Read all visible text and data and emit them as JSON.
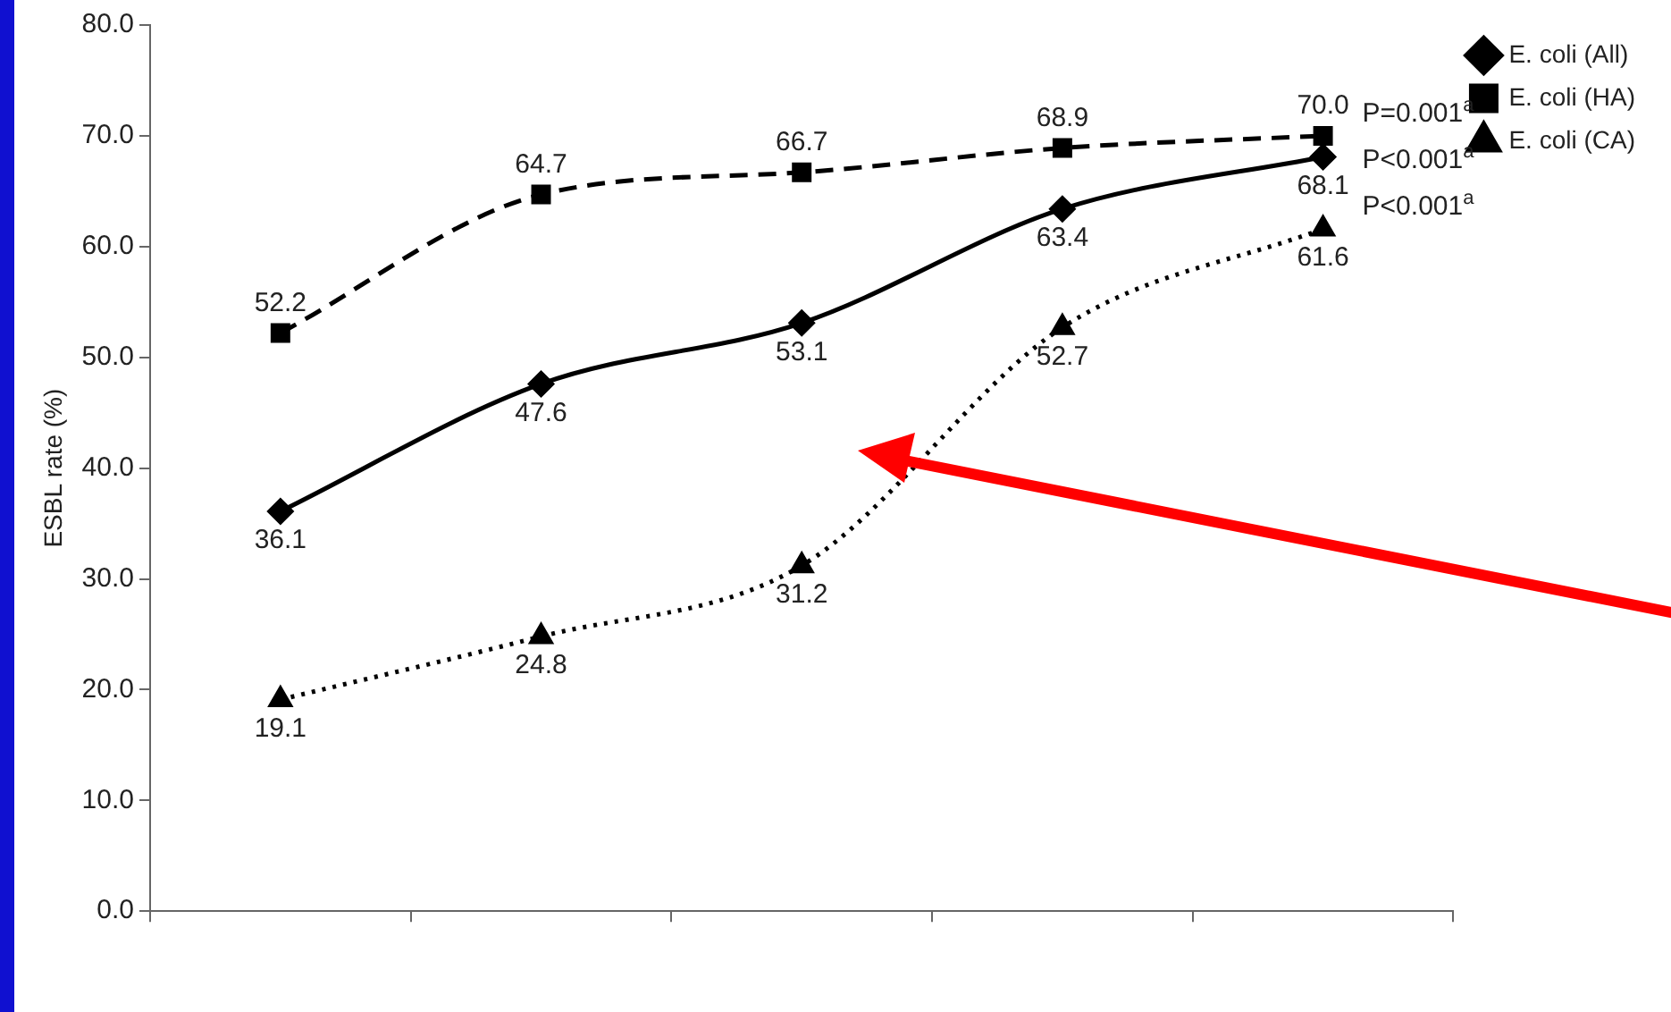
{
  "chart_data": {
    "type": "line",
    "ylabel": "ESBL rate (%)",
    "categories": [
      null,
      null,
      null,
      null,
      null
    ],
    "series": [
      {
        "name": "E. coli (All)",
        "color": "#000000",
        "marker": "diamond",
        "line_style": "solid",
        "values": [
          36.1,
          47.6,
          53.1,
          63.4,
          68.1
        ]
      },
      {
        "name": "E. coli (HA)",
        "color": "#000000",
        "marker": "square",
        "line_style": "dashed",
        "values": [
          52.2,
          64.7,
          66.7,
          68.9,
          70.0
        ],
        "value_labels": [
          "52.2",
          "64.7",
          "66.7",
          "68.9",
          "70.0"
        ]
      },
      {
        "name": "E. coli (CA)",
        "color": "#000000",
        "marker": "triangle",
        "line_style": "dotted",
        "values": [
          19.1,
          24.8,
          31.2,
          52.7,
          61.6
        ]
      }
    ],
    "ylim": [
      0,
      80
    ],
    "yticks": [
      {
        "value": 0,
        "label": "0.0"
      },
      {
        "value": 10,
        "label": "10.0"
      },
      {
        "value": 20,
        "label": "20.0"
      },
      {
        "value": 30,
        "label": "30.0"
      },
      {
        "value": 40,
        "label": "40.0"
      },
      {
        "value": 50,
        "label": "50.0"
      },
      {
        "value": 60,
        "label": "60.0"
      },
      {
        "value": 70,
        "label": "70.0"
      },
      {
        "value": 80,
        "label": "80.0"
      }
    ],
    "annotations": [
      "P=0.001$^{a}$",
      "P<0.001$^{a}$",
      "P<0.001$^{a}$"
    ],
    "data_labels": true,
    "grid": false,
    "legend": "top right"
  }
}
